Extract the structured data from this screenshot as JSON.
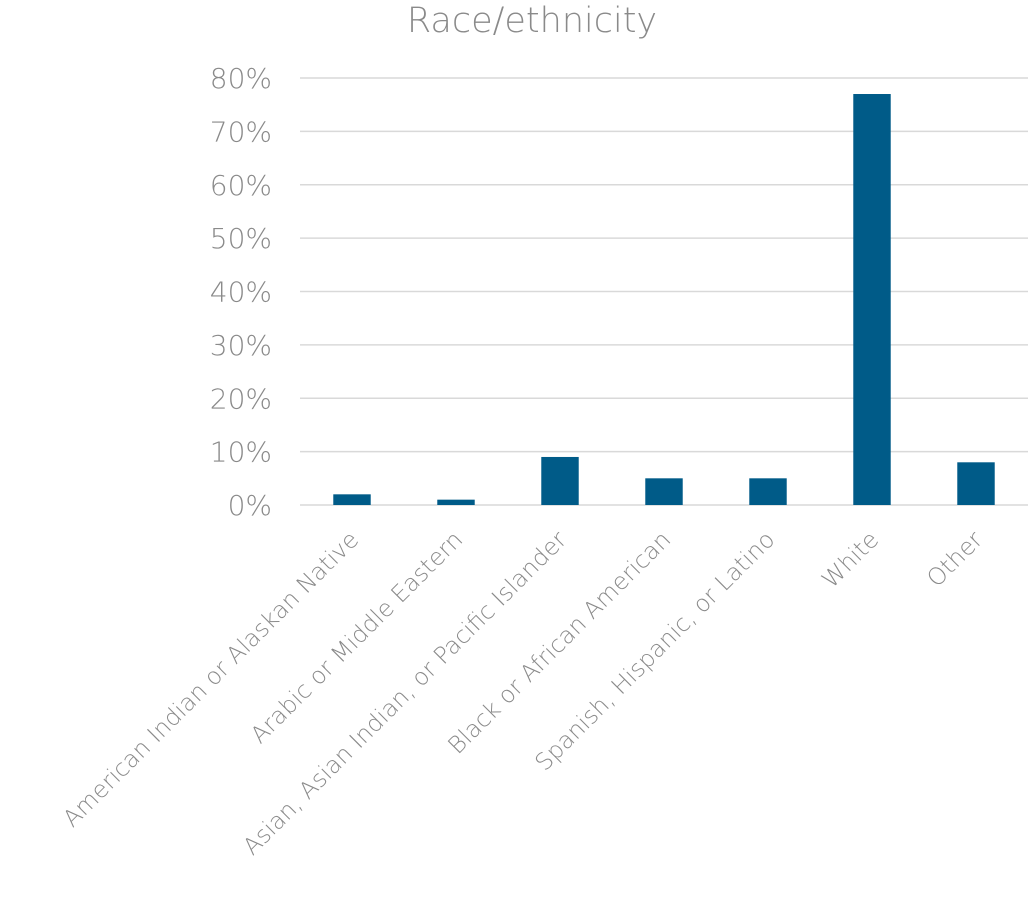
{
  "chart_data": {
    "type": "bar",
    "title": "Race/ethnicity",
    "categories": [
      "American Indian or Alaskan Native",
      "Arabic or Middle Eastern",
      "Asian, Asian Indian, or Pacific Islander",
      "Black or African American",
      "Spanish, Hispanic, or Latino",
      "White",
      "Other"
    ],
    "values": [
      2,
      1,
      9,
      5,
      5,
      77,
      8
    ],
    "ylim": [
      0,
      80
    ],
    "yticks": [
      0,
      10,
      20,
      30,
      40,
      50,
      60,
      70,
      80
    ],
    "ytick_labels": [
      "0%",
      "10%",
      "20%",
      "30%",
      "40%",
      "50%",
      "60%",
      "70%",
      "80%"
    ],
    "xlabel": "",
    "ylabel": "",
    "grid": true,
    "legend": "none",
    "bar_color": "#005b88"
  }
}
